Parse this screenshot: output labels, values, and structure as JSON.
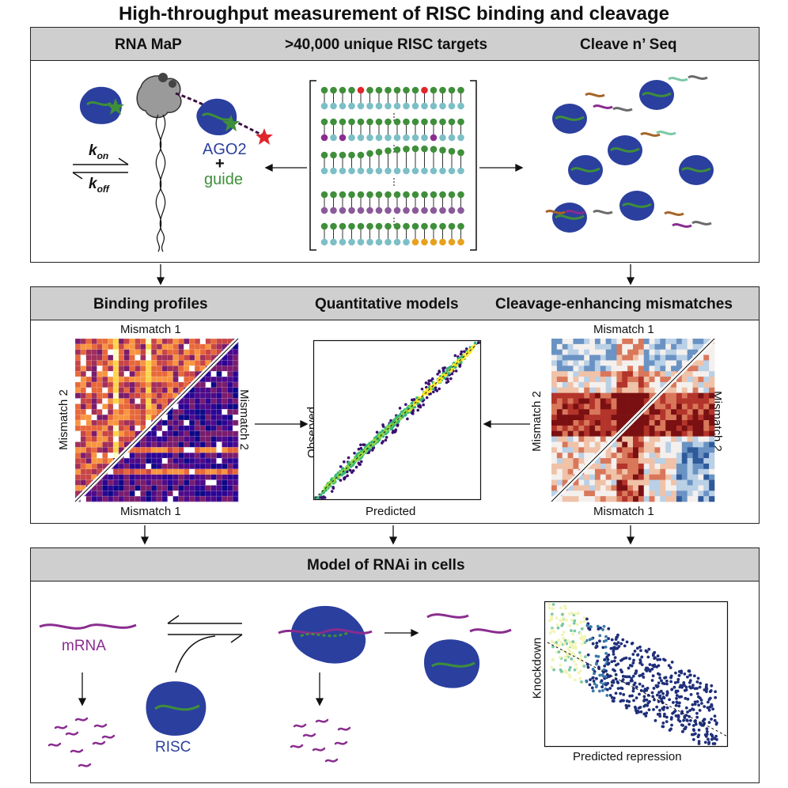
{
  "title": "High-throughput measurement of RISC binding and cleavage",
  "panel1": {
    "head_left": "RNA MaP",
    "head_center": ">40,000 unique RISC targets",
    "head_right": "Cleave n’ Seq",
    "k_on": "k",
    "k_on_sub": "on",
    "k_off": "k",
    "k_off_sub": "off",
    "ago2": "AGO2",
    "plus": "+",
    "guide": "guide"
  },
  "panel2": {
    "head_left": "Binding profiles",
    "head_center": "Quantitative models",
    "head_right": "Cleavage-enhancing mismatches",
    "binding_top": "Mismatch 1",
    "binding_left": "Mismatch 2",
    "binding_right": "Mismatch 2",
    "binding_bottom": "Mismatch 1",
    "scatter_ylabel": "Observed",
    "scatter_xlabel": "Predicted",
    "cleave_top": "Mismatch 1",
    "cleave_left": "Mismatch 2",
    "cleave_right": "Mismatch 2",
    "cleave_bottom": "Mismatch 1"
  },
  "panel3": {
    "head": "Model of RNAi in cells",
    "mrna": "mRNA",
    "risc": "RISC",
    "kd_ylabel": "Knockdown",
    "kd_xlabel": "Predicted repression"
  },
  "colors": {
    "ago": "#2b3f9e",
    "guide_green": "#3f8f3a",
    "star_red": "#e0262b",
    "mrna_purple": "#8a2d8f",
    "header_gray": "#cfcfcf"
  }
}
